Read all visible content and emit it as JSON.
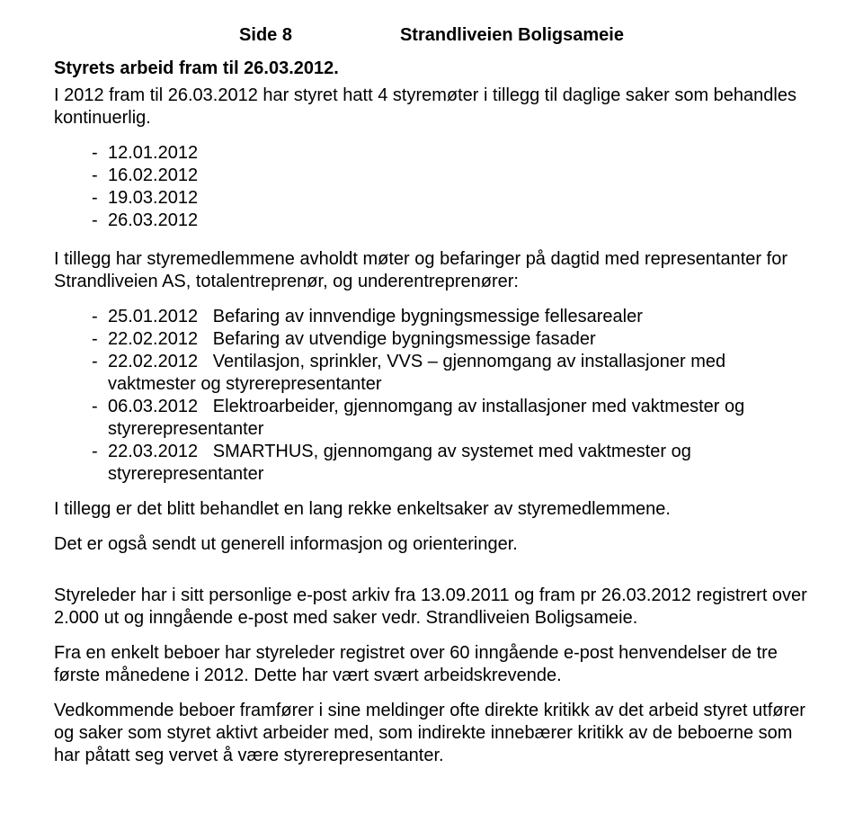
{
  "header": {
    "page_label": "Side 8",
    "doc_title": "Strandliveien Boligsameie"
  },
  "section_title": "Styrets arbeid fram til 26.03.2012.",
  "intro": "I 2012 fram til 26.03.2012 har styret hatt 4 styremøter i tillegg til daglige saker som behandles kontinuerlig.",
  "meeting_dates": [
    "12.01.2012",
    "16.02.2012",
    "19.03.2012",
    "26.03.2012"
  ],
  "representatives_intro": "I tillegg har styremedlemmene avholdt møter og befaringer på dagtid med representanter for Strandliveien AS, totalentreprenør, og underentreprenører:",
  "events": [
    {
      "date": "25.01.2012",
      "text": "Befaring av innvendige bygningsmessige fellesarealer"
    },
    {
      "date": "22.02.2012",
      "text": "Befaring av utvendige bygningsmessige fasader"
    },
    {
      "date": "22.02.2012",
      "text": "Ventilasjon, sprinkler, VVS – gjennomgang av installasjoner med vaktmester og styrerepresentanter"
    },
    {
      "date": "06.03.2012",
      "text": "Elektroarbeider, gjennomgang av installasjoner med vaktmester og styrerepresentanter"
    },
    {
      "date": "22.03.2012",
      "text": "SMARTHUS, gjennomgang av systemet med vaktmester og styrerepresentanter"
    }
  ],
  "para_enkelt": "I tillegg er det blitt behandlet en lang rekke enkeltsaker av styremedlemmene.",
  "para_info": "Det er også sendt ut generell informasjon og orienteringer.",
  "para_epost": "Styreleder har i sitt personlige e-post arkiv fra 13.09.2011 og fram pr 26.03.2012  registrert over 2.000  ut og inngående e-post med saker vedr. Strandliveien Boligsameie.",
  "para_beboer": "Fra en enkelt beboer har styreleder registret over 60 inngående e-post henvendelser de tre første månedene i 2012. Dette har vært svært arbeidskrevende.",
  "para_kritikk": "Vedkommende beboer framfører i sine meldinger ofte direkte kritikk av det arbeid styret utfører og saker som styret aktivt arbeider med, som indirekte innebærer kritikk av de beboerne som har påtatt seg vervet å være styrerepresentanter."
}
